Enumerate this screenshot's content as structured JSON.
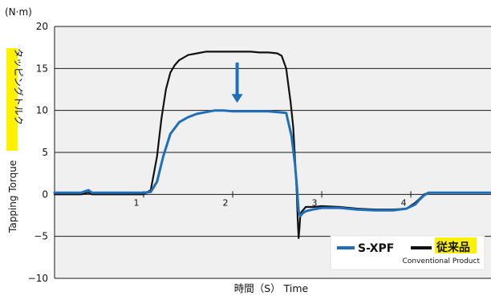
{
  "chart_data": {
    "type": "line",
    "ylim": [
      -10,
      20
    ],
    "xlim": [
      0,
      4.9
    ],
    "y_ticks": [
      -10,
      -5,
      0,
      5,
      10,
      15,
      20
    ],
    "y_tick_labels": [
      "−10",
      "−5",
      "0",
      "5",
      "10",
      "15",
      "20"
    ],
    "x_ticks": [
      1,
      2,
      3,
      4
    ],
    "x_tick_labels": [
      "1",
      "2",
      "3",
      "4"
    ],
    "y_unit": "(N·m)",
    "ylabel_en": "Tapping Torque",
    "ylabel_jp": "タッピングトルク",
    "xlabel": "時間（S） Time",
    "grid": true,
    "background": "#f0f0f0",
    "legend_position": "bottom-right",
    "highlight_color": "#fff200",
    "series": [
      {
        "name": "S-XPF",
        "color": "#1f6fb8",
        "x": [
          0,
          0.3,
          0.38,
          0.42,
          0.5,
          0.8,
          1.0,
          1.08,
          1.15,
          1.22,
          1.3,
          1.4,
          1.5,
          1.6,
          1.7,
          1.8,
          1.9,
          2.0,
          2.1,
          2.2,
          2.3,
          2.4,
          2.5,
          2.6,
          2.66,
          2.7,
          2.72,
          2.74,
          2.76,
          2.78,
          2.82,
          2.9,
          3.0,
          3.2,
          3.4,
          3.6,
          3.8,
          3.95,
          4.05,
          4.1,
          4.15,
          4.2,
          4.3,
          4.5,
          4.7,
          4.9
        ],
        "y": [
          0.2,
          0.2,
          0.5,
          0.2,
          0.2,
          0.2,
          0.2,
          0.3,
          1.5,
          4.5,
          7.2,
          8.6,
          9.2,
          9.6,
          9.8,
          10.0,
          10.0,
          9.9,
          9.9,
          9.9,
          9.9,
          9.9,
          9.8,
          9.7,
          7.0,
          3.5,
          1.0,
          -2.0,
          -2.6,
          -2.3,
          -2.0,
          -1.8,
          -1.6,
          -1.6,
          -1.8,
          -1.9,
          -1.9,
          -1.7,
          -1.2,
          -0.6,
          -0.1,
          0.2,
          0.2,
          0.2,
          0.2,
          0.2
        ]
      },
      {
        "name": "従来品",
        "color": "#111111",
        "x": [
          0,
          0.3,
          0.38,
          0.42,
          0.5,
          0.8,
          1.0,
          1.08,
          1.15,
          1.2,
          1.25,
          1.3,
          1.35,
          1.4,
          1.5,
          1.6,
          1.7,
          1.8,
          1.9,
          2.0,
          2.1,
          2.2,
          2.3,
          2.4,
          2.5,
          2.55,
          2.6,
          2.65,
          2.68,
          2.7,
          2.72,
          2.73,
          2.74,
          2.75,
          2.76,
          2.78,
          2.82,
          2.9,
          3.0,
          3.2,
          3.4,
          3.6,
          3.8,
          3.95,
          4.05,
          4.1,
          4.15,
          4.2,
          4.3,
          4.5,
          4.7,
          4.9
        ],
        "y": [
          0.0,
          0.0,
          0.2,
          0.0,
          0.0,
          0.0,
          0.0,
          0.5,
          4.5,
          9.0,
          12.5,
          14.5,
          15.4,
          16.0,
          16.6,
          16.8,
          17.0,
          17.0,
          17.0,
          17.0,
          17.0,
          17.0,
          16.9,
          16.9,
          16.8,
          16.5,
          15.0,
          11.0,
          8.0,
          4.0,
          0.0,
          -3.0,
          -5.2,
          -4.0,
          -2.3,
          -2.0,
          -1.5,
          -1.5,
          -1.4,
          -1.5,
          -1.7,
          -1.8,
          -1.8,
          -1.7,
          -1.0,
          -0.5,
          0.0,
          0.2,
          0.2,
          0.2,
          0.2,
          0.2
        ]
      }
    ],
    "annotations": [
      {
        "type": "arrow",
        "x": 2.05,
        "y_from": 15.7,
        "y_to": 10.9,
        "color": "#1f6fb8"
      }
    ],
    "legend": {
      "items": [
        "S-XPF",
        "従来品"
      ],
      "sub_label": "Conventional Product"
    }
  }
}
